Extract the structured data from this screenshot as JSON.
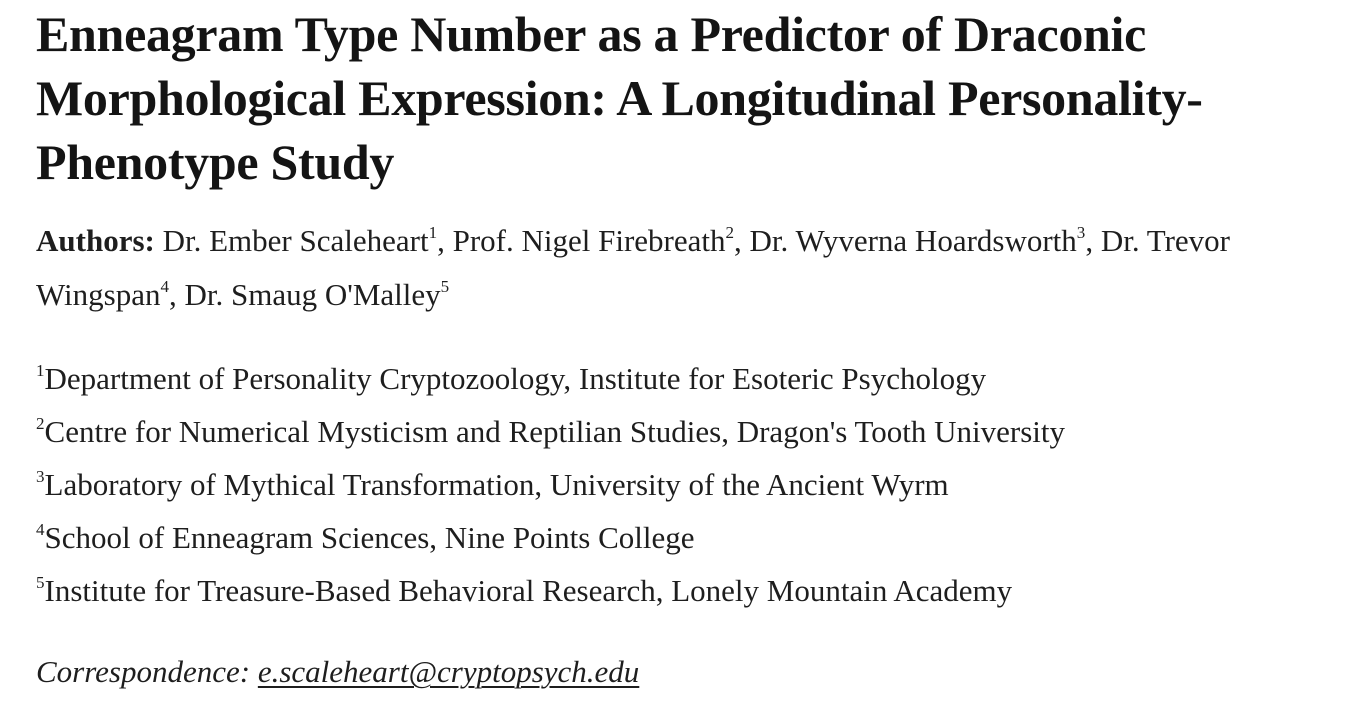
{
  "paper": {
    "title": "Enneagram Type Number as a Predictor of Draconic Morphological Expression: A Longitudinal Personality-Phenotype Study",
    "authors_label": "Authors:",
    "authors": [
      {
        "name": "Dr. Ember Scaleheart",
        "sup": "1",
        "sep": ", "
      },
      {
        "name": "Prof. Nigel Firebreath",
        "sup": "2",
        "sep": ", "
      },
      {
        "name": "Dr. Wyverna Hoardsworth",
        "sup": "3",
        "sep": ", "
      },
      {
        "name": "Dr. Trevor Wingspan",
        "sup": "4",
        "sep": ", "
      },
      {
        "name": "Dr. Smaug O'Malley",
        "sup": "5",
        "sep": ""
      }
    ],
    "affiliations": [
      {
        "sup": "1",
        "text": "Department of Personality Cryptozoology, Institute for Esoteric Psychology"
      },
      {
        "sup": "2",
        "text": "Centre for Numerical Mysticism and Reptilian Studies, Dragon's Tooth University"
      },
      {
        "sup": "3",
        "text": "Laboratory of Mythical Transformation, University of the Ancient Wyrm"
      },
      {
        "sup": "4",
        "text": "School of Enneagram Sciences, Nine Points College"
      },
      {
        "sup": "5",
        "text": "Institute for Treasure-Based Behavioral Research, Lonely Mountain Academy"
      }
    ],
    "correspondence_label": "Correspondence:",
    "correspondence_email": "e.scaleheart@cryptopsych.edu",
    "correspondence_href": "mailto:e.scaleheart@cryptopsych.edu"
  }
}
